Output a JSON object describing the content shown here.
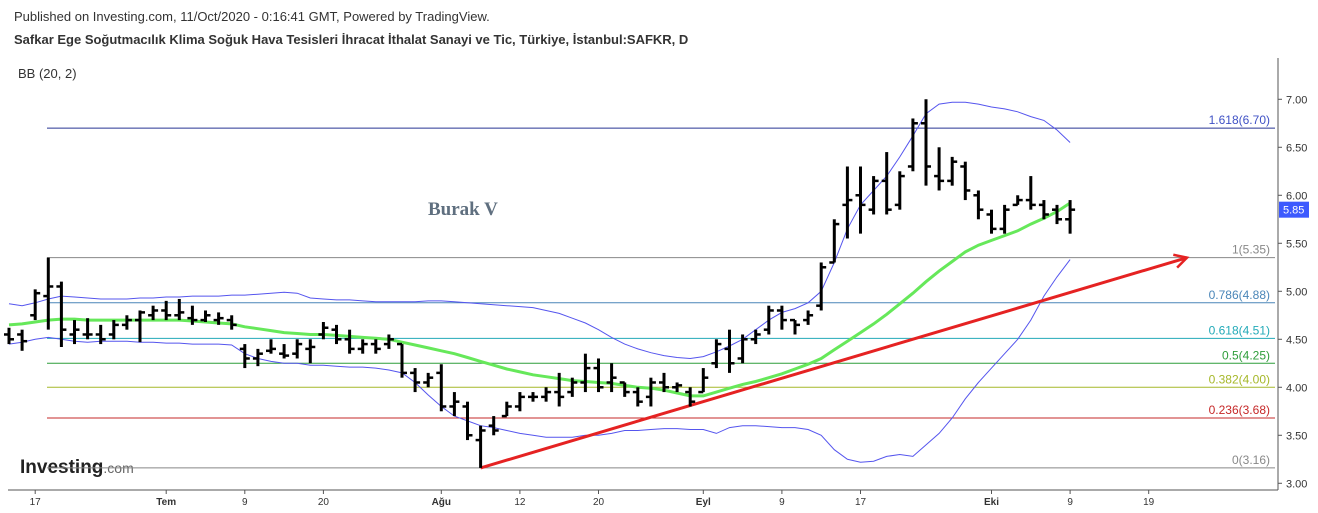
{
  "chart_data": {
    "type": "ohlc",
    "published": "Published on Investing.com, 11/Oct/2020 - 0:16:41 GMT, Powered by TradingView.",
    "title": "Safkar Ege Soğutmacılık Klima Soğuk Hava Tesisleri İhracat İthalat Sanayi ve Tic, Türkiye, İstanbul:SAFKR, D",
    "annotation": "Burak V",
    "logo": [
      "Investing",
      ".com"
    ],
    "categories": [
      null,
      null,
      "17",
      null,
      null,
      null,
      null,
      null,
      null,
      null,
      null,
      null,
      "Tem",
      null,
      null,
      null,
      null,
      null,
      "9",
      null,
      null,
      null,
      null,
      null,
      "20",
      null,
      null,
      null,
      null,
      null,
      null,
      null,
      null,
      "Ağu",
      null,
      null,
      null,
      null,
      null,
      "12",
      null,
      null,
      null,
      null,
      null,
      "20",
      null,
      null,
      null,
      null,
      null,
      null,
      null,
      "Eyl",
      null,
      null,
      null,
      null,
      null,
      "9",
      null,
      null,
      null,
      null,
      null,
      "17",
      null,
      null,
      null,
      null,
      null,
      null,
      null,
      null,
      null,
      "Eki",
      null,
      null,
      null,
      null,
      null,
      "9",
      null,
      null,
      null,
      null,
      null,
      "19"
    ],
    "ohlc": {
      "color": "#000000",
      "open": [
        4.55,
        4.55,
        4.75,
        4.95,
        5.05,
        4.55,
        4.55,
        4.55,
        4.55,
        4.65,
        4.7,
        4.75,
        4.8,
        4.75,
        4.72,
        4.7,
        4.7,
        4.7,
        4.4,
        4.3,
        4.38,
        4.35,
        4.35,
        4.4,
        4.55,
        4.6,
        4.5,
        4.4,
        4.45,
        4.45,
        4.45,
        4.15,
        4.05,
        4.15,
        3.8,
        3.8,
        3.45,
        3.6,
        3.7,
        3.8,
        3.9,
        3.9,
        3.95,
        3.95,
        4.05,
        4.2,
        4.05,
        4.05,
        3.95,
        3.9,
        4.05,
        4.0,
        3.95,
        3.95,
        4.25,
        4.4,
        4.3,
        4.5,
        4.6,
        4.8,
        4.7,
        4.7,
        4.85,
        5.3,
        5.9,
        6.0,
        5.85,
        6.15,
        5.9,
        6.3,
        6.75,
        6.2,
        6.15,
        6.3,
        6.0,
        5.8,
        5.65,
        5.9,
        5.95,
        5.9,
        5.85,
        5.75,
        null,
        null,
        null,
        null,
        null,
        null
      ],
      "high": [
        4.62,
        4.6,
        5.02,
        5.35,
        5.1,
        4.7,
        4.72,
        4.65,
        4.7,
        4.75,
        4.8,
        4.85,
        4.9,
        4.92,
        4.85,
        4.8,
        4.78,
        4.75,
        4.45,
        4.4,
        4.5,
        4.45,
        4.5,
        4.5,
        4.68,
        4.65,
        4.6,
        4.5,
        4.5,
        4.55,
        4.45,
        4.2,
        4.15,
        4.24,
        3.95,
        3.85,
        3.6,
        3.7,
        3.85,
        3.95,
        3.95,
        4.0,
        4.15,
        4.1,
        4.35,
        4.3,
        4.25,
        4.05,
        4.0,
        4.1,
        4.15,
        4.05,
        4.0,
        4.2,
        4.5,
        4.6,
        4.55,
        4.6,
        4.85,
        4.85,
        4.7,
        4.8,
        5.3,
        5.75,
        6.3,
        6.3,
        6.2,
        6.45,
        6.25,
        6.8,
        7.0,
        6.5,
        6.4,
        6.35,
        6.05,
        5.85,
        5.9,
        6.0,
        6.2,
        5.95,
        5.9,
        5.95,
        null,
        null,
        null,
        null,
        null,
        null
      ],
      "low": [
        4.45,
        4.38,
        4.7,
        4.6,
        4.42,
        4.45,
        4.5,
        4.45,
        4.5,
        4.6,
        4.47,
        4.7,
        4.7,
        4.7,
        4.65,
        4.68,
        4.65,
        4.6,
        4.2,
        4.22,
        4.35,
        4.3,
        4.3,
        4.25,
        4.5,
        4.45,
        4.35,
        4.35,
        4.35,
        4.4,
        4.1,
        3.95,
        4.0,
        3.75,
        3.7,
        3.45,
        3.16,
        3.5,
        3.7,
        3.75,
        3.85,
        3.85,
        3.8,
        3.9,
        3.95,
        3.95,
        3.95,
        3.9,
        3.8,
        3.8,
        3.95,
        3.95,
        3.8,
        3.95,
        4.2,
        4.15,
        4.25,
        4.45,
        4.55,
        4.6,
        4.55,
        4.65,
        4.8,
        5.3,
        5.55,
        5.6,
        5.8,
        5.8,
        5.85,
        6.25,
        6.1,
        6.05,
        6.1,
        5.95,
        5.75,
        5.6,
        5.6,
        5.9,
        5.85,
        5.75,
        5.7,
        5.6,
        null,
        null,
        null,
        null,
        null,
        null
      ],
      "close": [
        4.5,
        4.48,
        4.98,
        5.05,
        4.6,
        4.6,
        4.55,
        4.5,
        4.65,
        4.7,
        4.78,
        4.8,
        4.75,
        4.78,
        4.7,
        4.75,
        4.72,
        4.65,
        4.3,
        4.35,
        4.4,
        4.33,
        4.45,
        4.42,
        4.62,
        4.5,
        4.4,
        4.45,
        4.4,
        4.5,
        4.15,
        4.05,
        4.1,
        3.8,
        3.85,
        3.5,
        3.55,
        3.55,
        3.8,
        3.9,
        3.9,
        3.95,
        3.9,
        4.05,
        4.2,
        4.0,
        4.1,
        3.95,
        3.85,
        4.05,
        4.0,
        4.02,
        3.85,
        4.1,
        4.45,
        4.25,
        4.5,
        4.55,
        4.8,
        4.7,
        4.65,
        4.75,
        5.25,
        5.7,
        5.95,
        5.9,
        6.15,
        5.85,
        6.2,
        6.75,
        6.3,
        6.15,
        6.35,
        6.05,
        5.85,
        5.65,
        5.85,
        5.95,
        5.9,
        5.8,
        5.75,
        5.85,
        null,
        null,
        null,
        null,
        null,
        null
      ]
    },
    "bollinger": {
      "label": "BB (20, 2)",
      "band_color": "#5555ee",
      "middle_color": "#66e85a",
      "middle": [
        4.65,
        4.66,
        4.68,
        4.7,
        4.71,
        4.71,
        4.7,
        4.7,
        4.7,
        4.7,
        4.7,
        4.7,
        4.7,
        4.7,
        4.69,
        4.68,
        4.67,
        4.66,
        4.63,
        4.61,
        4.59,
        4.57,
        4.56,
        4.55,
        4.55,
        4.54,
        4.53,
        4.52,
        4.51,
        4.5,
        4.47,
        4.44,
        4.41,
        4.38,
        4.35,
        4.31,
        4.27,
        4.23,
        4.19,
        4.16,
        4.13,
        4.11,
        4.09,
        4.07,
        4.06,
        4.05,
        4.04,
        4.02,
        4.0,
        3.99,
        3.97,
        3.94,
        3.91,
        3.91,
        3.95,
        3.99,
        4.03,
        4.06,
        4.1,
        4.14,
        4.19,
        4.24,
        4.3,
        4.39,
        4.48,
        4.57,
        4.66,
        4.76,
        4.87,
        4.98,
        5.1,
        5.21,
        5.31,
        5.41,
        5.48,
        5.53,
        5.58,
        5.63,
        5.7,
        5.76,
        5.83,
        5.92,
        null,
        null,
        null,
        null,
        null,
        null
      ],
      "upper": [
        4.87,
        4.85,
        4.88,
        4.92,
        4.95,
        4.94,
        4.93,
        4.92,
        4.92,
        4.92,
        4.93,
        4.93,
        4.94,
        4.94,
        4.95,
        4.95,
        4.95,
        4.96,
        4.96,
        4.97,
        4.98,
        4.99,
        4.98,
        4.93,
        4.92,
        4.91,
        4.91,
        4.9,
        4.89,
        4.89,
        4.89,
        4.89,
        4.9,
        4.9,
        4.89,
        4.88,
        4.87,
        4.86,
        4.85,
        4.84,
        4.83,
        4.8,
        4.77,
        4.72,
        4.67,
        4.6,
        4.52,
        4.45,
        4.4,
        4.36,
        4.33,
        4.31,
        4.3,
        4.32,
        4.37,
        4.43,
        4.5,
        4.6,
        4.7,
        4.78,
        4.82,
        4.88,
        5.0,
        5.3,
        5.65,
        5.9,
        6.05,
        6.2,
        6.4,
        6.62,
        6.85,
        6.95,
        6.97,
        6.97,
        6.95,
        6.92,
        6.9,
        6.87,
        6.82,
        6.78,
        6.68,
        6.55,
        null,
        null,
        null,
        null,
        null,
        null
      ],
      "lower": [
        4.45,
        4.47,
        4.5,
        4.52,
        4.5,
        4.48,
        4.47,
        4.48,
        4.48,
        4.48,
        4.47,
        4.47,
        4.46,
        4.46,
        4.45,
        4.45,
        4.45,
        4.44,
        4.35,
        4.3,
        4.27,
        4.25,
        4.25,
        4.23,
        4.23,
        4.22,
        4.21,
        4.21,
        4.2,
        4.18,
        4.15,
        4.05,
        3.92,
        3.8,
        3.7,
        3.65,
        3.6,
        3.58,
        3.55,
        3.52,
        3.5,
        3.48,
        3.48,
        3.48,
        3.5,
        3.5,
        3.52,
        3.55,
        3.55,
        3.56,
        3.57,
        3.57,
        3.56,
        3.56,
        3.52,
        3.58,
        3.6,
        3.6,
        3.59,
        3.58,
        3.58,
        3.56,
        3.5,
        3.35,
        3.25,
        3.22,
        3.23,
        3.28,
        3.3,
        3.28,
        3.4,
        3.52,
        3.68,
        3.88,
        4.05,
        4.2,
        4.35,
        4.5,
        4.7,
        4.95,
        5.15,
        5.33,
        null,
        null,
        null,
        null,
        null,
        null
      ]
    },
    "fib_levels": [
      {
        "label": "1.618(6.70)",
        "value": 6.7,
        "color": "#283593",
        "label_color": "#3f51c5"
      },
      {
        "label": "1(5.35)",
        "value": 5.35,
        "color": "#888888",
        "label_color": "#888888"
      },
      {
        "label": "0.786(4.88)",
        "value": 4.88,
        "color": "#4a86b8",
        "label_color": "#4a86b8"
      },
      {
        "label": "0.618(4.51)",
        "value": 4.51,
        "color": "#22aab8",
        "label_color": "#22aab8"
      },
      {
        "label": "0.5(4.25)",
        "value": 4.25,
        "color": "#2e9d3a",
        "label_color": "#2e9d3a"
      },
      {
        "label": "0.382(4.00)",
        "value": 4.0,
        "color": "#a6b82a",
        "label_color": "#a6b82a"
      },
      {
        "label": "0.236(3.68)",
        "value": 3.68,
        "color": "#c62828",
        "label_color": "#c62828"
      },
      {
        "label": "0(3.16)",
        "value": 3.16,
        "color": "#888888",
        "label_color": "#888888"
      }
    ],
    "trendline": {
      "color": "#e52222",
      "values": [
        3.16,
        5.35
      ]
    },
    "last_price": 5.85,
    "last_price_color": "#3d5afe",
    "ylim": [
      2.93,
      7.43
    ],
    "yticks": [
      {
        "value": 3,
        "label": "3.00"
      },
      {
        "value": 3.5,
        "label": "3.50"
      },
      {
        "value": 4,
        "label": "4.00"
      },
      {
        "value": 4.5,
        "label": "4.50"
      },
      {
        "value": 5,
        "label": "5.00"
      },
      {
        "value": 5.5,
        "label": "5.50"
      },
      {
        "value": 6,
        "label": "6.00"
      },
      {
        "value": 6.5,
        "label": "6.50"
      },
      {
        "value": 7,
        "label": "7.00"
      }
    ]
  }
}
